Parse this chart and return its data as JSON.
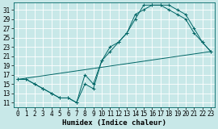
{
  "xlabel": "Humidex (Indice chaleur)",
  "bg_color": "#c8e8e8",
  "grid_color": "#b8d8d8",
  "line_color": "#006666",
  "xlim": [
    -0.5,
    23.5
  ],
  "ylim": [
    10.0,
    32.5
  ],
  "xticks": [
    0,
    1,
    2,
    3,
    4,
    5,
    6,
    7,
    8,
    9,
    10,
    11,
    12,
    13,
    14,
    15,
    16,
    17,
    18,
    19,
    20,
    21,
    22,
    23
  ],
  "yticks": [
    11,
    13,
    15,
    17,
    19,
    21,
    23,
    25,
    27,
    29,
    31
  ],
  "series": [
    {
      "x": [
        0,
        1,
        2,
        3,
        4,
        5,
        6,
        7,
        8,
        9,
        10,
        11,
        12,
        13,
        14,
        15,
        16,
        17,
        18,
        19,
        20,
        21,
        22,
        23
      ],
      "y": [
        16,
        16,
        15,
        14,
        13,
        12,
        12,
        11,
        17,
        15,
        20,
        23,
        24,
        26,
        29,
        32,
        32,
        32,
        32,
        31,
        30,
        27,
        24,
        22
      ],
      "marker": true
    },
    {
      "x": [
        0,
        1,
        2,
        3,
        4,
        5,
        6,
        7,
        8,
        9,
        10,
        11,
        12,
        13,
        14,
        15,
        16,
        17,
        18,
        19,
        20,
        21,
        22,
        23
      ],
      "y": [
        16,
        16,
        15,
        14,
        13,
        12,
        12,
        11,
        15,
        14,
        20,
        22,
        24,
        26,
        30,
        31,
        32,
        32,
        31,
        30,
        29,
        26,
        24,
        22
      ],
      "marker": true
    },
    {
      "x": [
        0,
        23
      ],
      "y": [
        16,
        22
      ],
      "marker": false
    }
  ]
}
